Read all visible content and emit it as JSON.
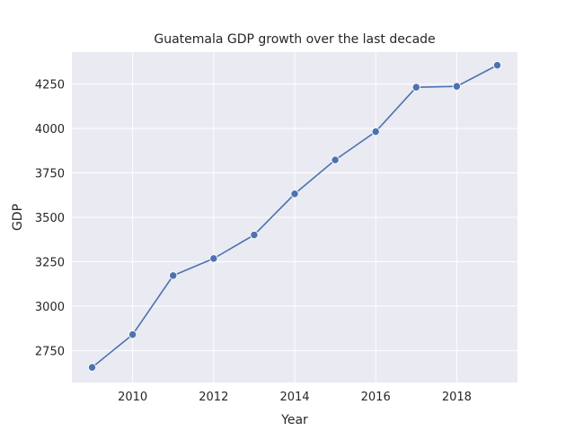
{
  "chart_data": {
    "type": "line",
    "title": "Guatemala GDP growth over the last decade",
    "xlabel": "Year",
    "ylabel": "GDP",
    "x": [
      2009,
      2010,
      2011,
      2012,
      2013,
      2014,
      2015,
      2016,
      2017,
      2018,
      2019
    ],
    "series": [
      {
        "values": [
          2655,
          2840,
          3172,
          3268,
          3401,
          3632,
          3823,
          3982,
          4232,
          4237,
          4356
        ],
        "color": "#4c72b0",
        "marker": "circle"
      }
    ],
    "xlim": [
      2008.5,
      2019.5
    ],
    "ylim": [
      2570,
      4430
    ],
    "xticks": [
      2010,
      2012,
      2014,
      2016,
      2018
    ],
    "yticks": [
      2750,
      3000,
      3250,
      3500,
      3750,
      4000,
      4250
    ],
    "grid": true,
    "background": "#eaeaf2"
  }
}
